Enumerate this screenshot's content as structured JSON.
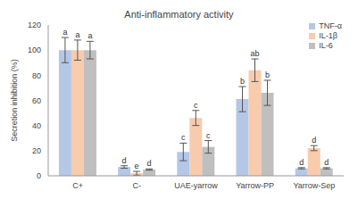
{
  "chart_data": {
    "type": "bar",
    "title": "Anti-inflammatory activity",
    "y_label": "Secretion inhibition (%)",
    "categories": [
      "C+",
      "C-",
      "UAE-yarrow",
      "Yarrow-PP",
      "Yarrow-Sep"
    ],
    "series": [
      {
        "name": "TNF-α",
        "color": "#b4c7e7",
        "values": [
          100,
          7,
          19,
          61,
          6
        ],
        "errors": [
          10,
          1,
          7,
          10,
          0.5
        ],
        "letters": [
          "a",
          "d",
          "c",
          "b",
          "d"
        ]
      },
      {
        "name": "IL-1β",
        "color": "#f8cbad",
        "values": [
          100,
          2,
          46,
          84,
          22
        ],
        "errors": [
          8,
          1.5,
          6,
          9,
          2
        ],
        "letters": [
          "a",
          "e",
          "c",
          "ab",
          "d"
        ]
      },
      {
        "name": "IL-6",
        "color": "#bfbfbf",
        "values": [
          100,
          5,
          23,
          66,
          6
        ],
        "errors": [
          7,
          0.5,
          5,
          10,
          0.5
        ],
        "letters": [
          "a",
          "d",
          "c",
          "b",
          "d"
        ]
      }
    ],
    "ylim": [
      0,
      120
    ],
    "yticks": [
      0,
      20,
      40,
      60,
      80,
      100,
      120
    ],
    "grid": false,
    "legend": "top-right"
  }
}
